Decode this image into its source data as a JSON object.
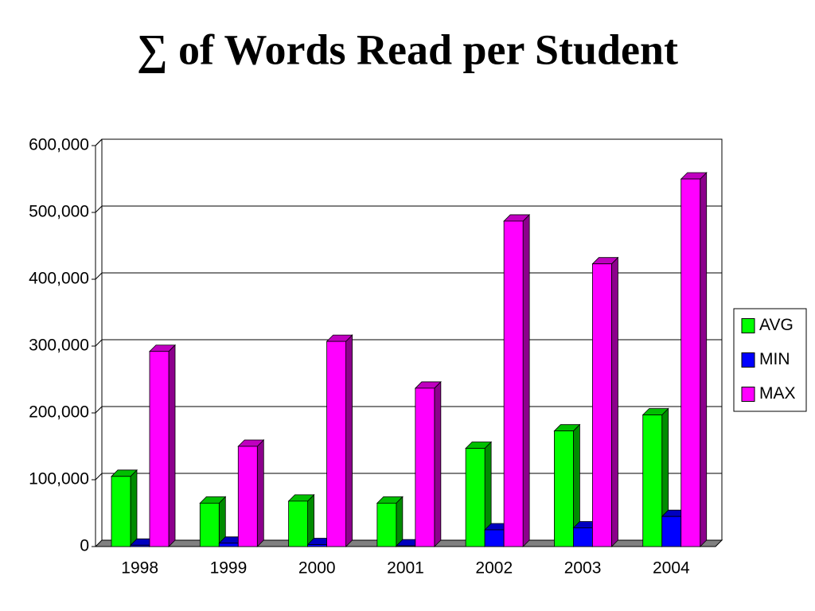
{
  "chart_data": {
    "type": "bar3d",
    "title": "∑ of Words Read per Student",
    "categories": [
      "1998",
      "1999",
      "2000",
      "2001",
      "2002",
      "2003",
      "2004"
    ],
    "series": [
      {
        "name": "AVG",
        "color": "#00ff00",
        "values": [
          105000,
          65000,
          68000,
          65000,
          147000,
          173000,
          197000
        ]
      },
      {
        "name": "MIN",
        "color": "#0000ff",
        "values": [
          2000,
          5000,
          3000,
          1000,
          25000,
          28000,
          45000
        ]
      },
      {
        "name": "MAX",
        "color": "#ff00ff",
        "values": [
          292000,
          150000,
          307000,
          237000,
          487000,
          423000,
          550000
        ]
      }
    ],
    "ylim": [
      0,
      600000
    ],
    "yticks": [
      0,
      {
        "value": 100000,
        "label": "100,000"
      },
      {
        "value": 200000,
        "label": "200,000"
      },
      {
        "value": 300000,
        "label": "300,000"
      },
      {
        "value": 400000,
        "label": "400,000"
      },
      {
        "value": 500000,
        "label": "500,000"
      },
      {
        "value": 600000,
        "label": "600,000"
      }
    ],
    "grid": true,
    "legend": "right"
  }
}
